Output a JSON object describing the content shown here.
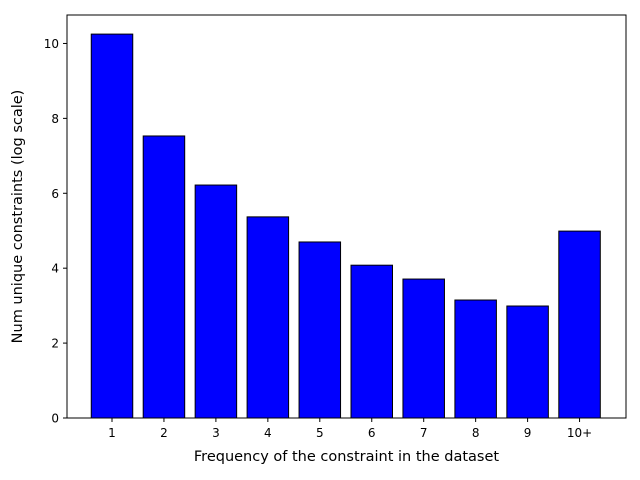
{
  "chart_data": {
    "type": "bar",
    "categories": [
      "1",
      "2",
      "3",
      "4",
      "5",
      "6",
      "7",
      "8",
      "9",
      "10+"
    ],
    "values": [
      10.25,
      7.53,
      6.22,
      5.37,
      4.7,
      4.08,
      3.71,
      3.15,
      2.99,
      4.99
    ],
    "title": "",
    "xlabel": "Frequency of the constraint in the dataset",
    "ylabel": "Num unique constraints (log scale)",
    "ylim": [
      0,
      10.76
    ],
    "yticks": [
      0,
      2,
      4,
      6,
      8,
      10
    ],
    "grid": false,
    "bar_color": "#0000ff",
    "bar_edge_color": "#000000"
  }
}
